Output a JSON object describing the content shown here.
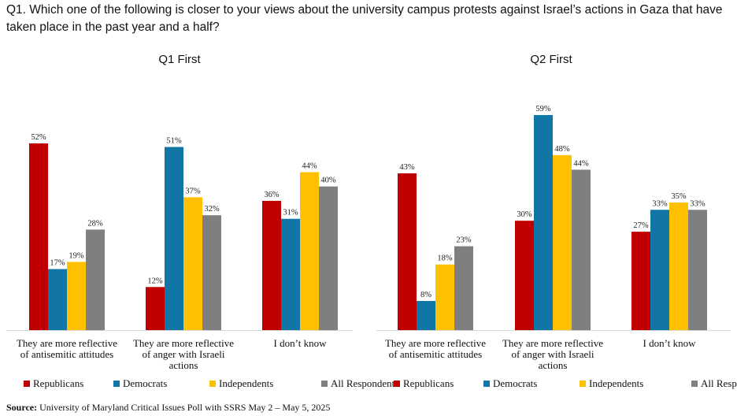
{
  "question": "Q1. Which one of the following is closer to your views about the university campus protests against Israel’s actions in Gaza that have taken place in the past year and a half?",
  "source_label": "Source:",
  "source_text": "University of Maryland Critical Issues Poll with SSRS May 2 – May 5, 2025",
  "colors": {
    "Republicans": "#C00000",
    "Democrats": "#1176A5",
    "Independents": "#FFC000",
    "All Respondents": "#7F7F7F"
  },
  "chart_data": [
    {
      "type": "bar",
      "title": "Q1 First",
      "categories": [
        [
          "They are more reflective",
          "of antisemitic attitudes"
        ],
        [
          "They are more reflective",
          "of anger with Israeli",
          "actions"
        ],
        [
          "I don’t know"
        ]
      ],
      "series": [
        {
          "name": "Republicans",
          "values": [
            52,
            12,
            36
          ],
          "labels": [
            "52%",
            "12%",
            "36%"
          ]
        },
        {
          "name": "Democrats",
          "values": [
            17,
            51,
            31
          ],
          "labels": [
            "17%",
            "51%",
            "31%"
          ]
        },
        {
          "name": "Independents",
          "values": [
            19,
            37,
            44
          ],
          "labels": [
            "19%",
            "37%",
            "44%"
          ]
        },
        {
          "name": "All Respondents",
          "values": [
            28,
            32,
            40
          ],
          "labels": [
            "28%",
            "32%",
            "40%"
          ]
        }
      ],
      "ylim": [
        0,
        52
      ],
      "grid": false,
      "legend": "bottom"
    },
    {
      "type": "bar",
      "title": "Q2 First",
      "categories": [
        [
          "They are more reflective",
          "of antisemitic attitudes"
        ],
        [
          "They are more reflective",
          "of anger with Israeli",
          "actions"
        ],
        [
          "I don’t know"
        ]
      ],
      "series": [
        {
          "name": "Republicans",
          "values": [
            43,
            30,
            27
          ],
          "labels": [
            "43%",
            "30%",
            "27%"
          ]
        },
        {
          "name": "Democrats",
          "values": [
            8,
            59,
            33
          ],
          "labels": [
            "8%",
            "59%",
            "33%"
          ]
        },
        {
          "name": "Independents",
          "values": [
            18,
            48,
            35
          ],
          "labels": [
            "18%",
            "48%",
            "35%"
          ]
        },
        {
          "name": "All Respondents",
          "values": [
            23,
            44,
            33
          ],
          "labels": [
            "23%",
            "44%",
            "33%"
          ]
        }
      ],
      "ylim": [
        0,
        59
      ],
      "grid": false,
      "legend": "bottom"
    }
  ]
}
